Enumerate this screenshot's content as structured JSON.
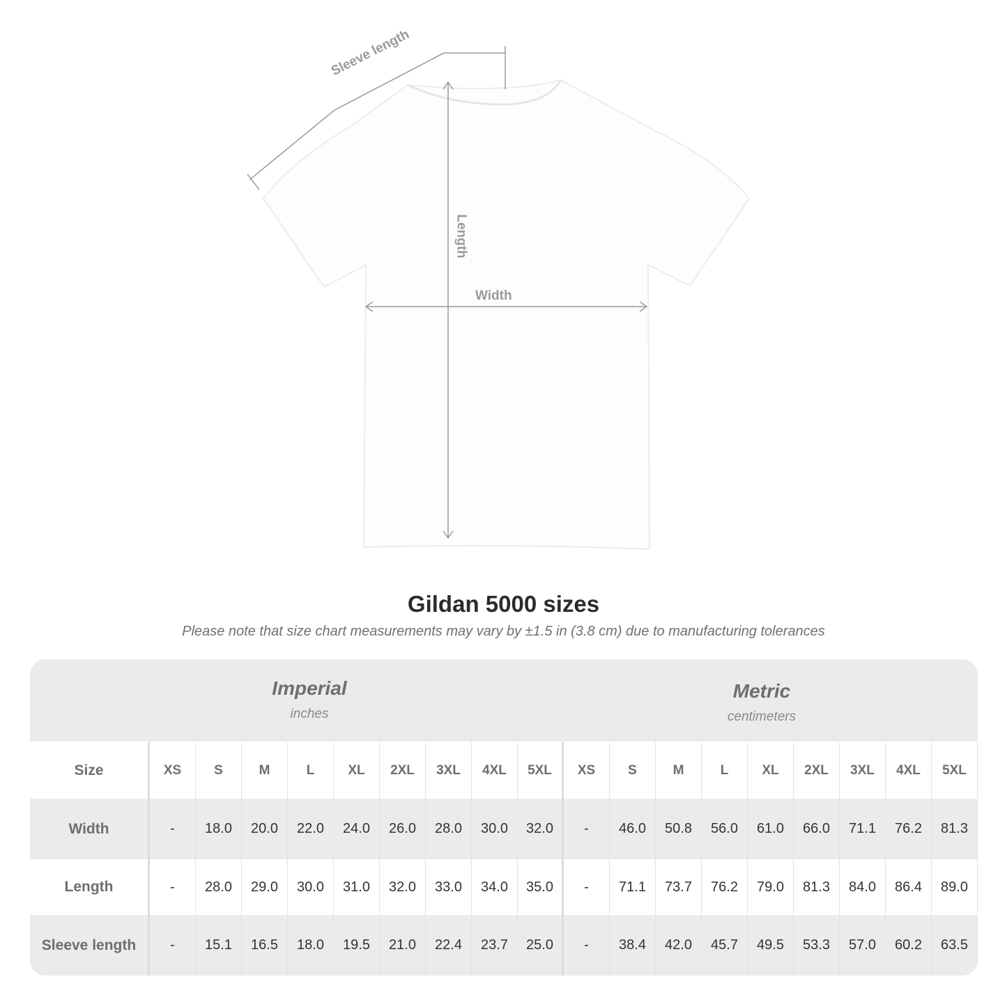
{
  "diagram": {
    "sleeve_label": "Sleeve length",
    "length_label": "Length",
    "width_label": "Width"
  },
  "title": "Gildan 5000 sizes",
  "note": "Please note that size chart measurements may vary by ±1.5 in (3.8 cm) due to manufacturing tolerances",
  "imperial": {
    "name": "Imperial",
    "unit": "inches"
  },
  "metric": {
    "name": "Metric",
    "unit": "centimeters"
  },
  "rows": [
    {
      "label": "Size",
      "imperial": [
        "XS",
        "S",
        "M",
        "L",
        "XL",
        "2XL",
        "3XL",
        "4XL",
        "5XL"
      ],
      "metric": [
        "XS",
        "S",
        "M",
        "L",
        "XL",
        "2XL",
        "3XL",
        "4XL",
        "5XL"
      ]
    },
    {
      "label": "Width",
      "imperial": [
        "-",
        "18.0",
        "20.0",
        "22.0",
        "24.0",
        "26.0",
        "28.0",
        "30.0",
        "32.0"
      ],
      "metric": [
        "-",
        "46.0",
        "50.8",
        "56.0",
        "61.0",
        "66.0",
        "71.1",
        "76.2",
        "81.3"
      ]
    },
    {
      "label": "Length",
      "imperial": [
        "-",
        "28.0",
        "29.0",
        "30.0",
        "31.0",
        "32.0",
        "33.0",
        "34.0",
        "35.0"
      ],
      "metric": [
        "-",
        "71.1",
        "73.7",
        "76.2",
        "79.0",
        "81.3",
        "84.0",
        "86.4",
        "89.0"
      ]
    },
    {
      "label": "Sleeve length",
      "imperial": [
        "-",
        "15.1",
        "16.5",
        "18.0",
        "19.5",
        "21.0",
        "22.4",
        "23.7",
        "25.0"
      ],
      "metric": [
        "-",
        "38.4",
        "42.0",
        "45.7",
        "49.5",
        "53.3",
        "57.0",
        "60.2",
        "63.5"
      ]
    }
  ]
}
